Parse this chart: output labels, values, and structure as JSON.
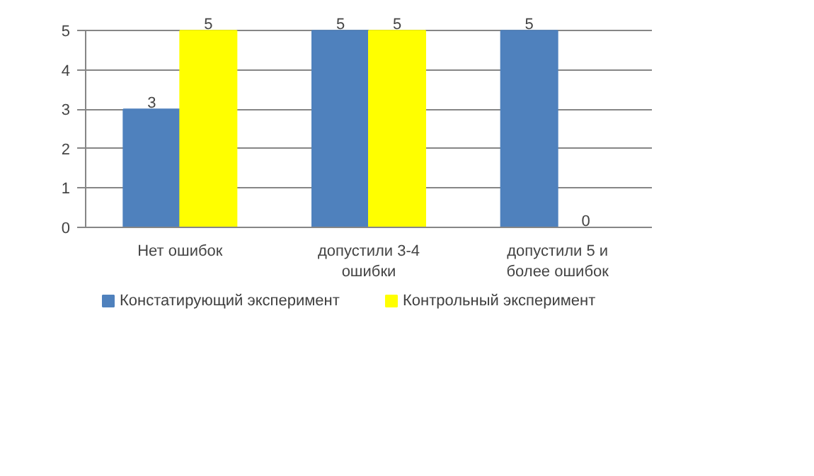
{
  "chart_data": {
    "type": "bar",
    "categories": [
      "Нет ошибок",
      "допустили 3-4 ошибки",
      "допустили 5 и более ошибок"
    ],
    "series": [
      {
        "name": "Констатирующий эксперимент",
        "color": "#4f81bd",
        "values": [
          3,
          5,
          5
        ]
      },
      {
        "name": "Контрольный эксперимент",
        "color": "#ffff00",
        "values": [
          5,
          5,
          0
        ]
      }
    ],
    "ylim": [
      0,
      5
    ],
    "yticks": [
      0,
      1,
      2,
      3,
      4,
      5
    ],
    "grid": "y",
    "legend": "bottom",
    "data_labels": true
  }
}
